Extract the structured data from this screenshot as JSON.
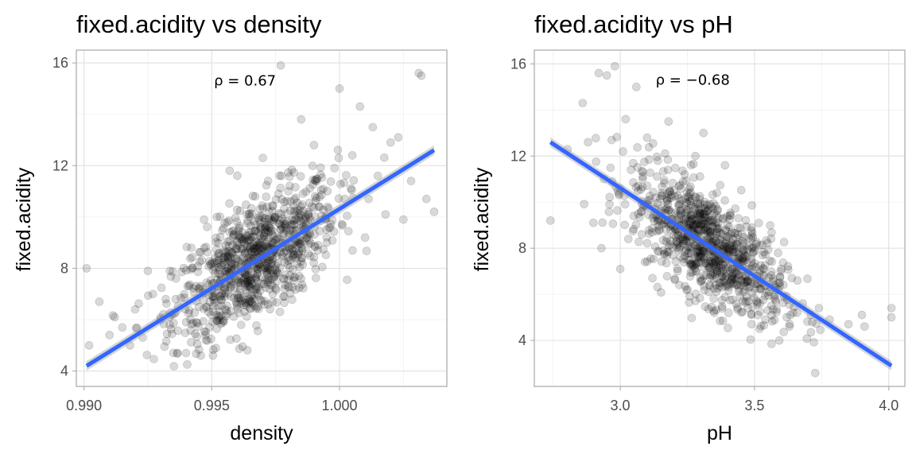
{
  "chart_data": [
    {
      "type": "scatter",
      "title": "fixed.acidity vs density",
      "xlabel": "density",
      "ylabel": "fixed.acidity",
      "xlim": [
        0.9897,
        1.0042
      ],
      "ylim": [
        3.4,
        16.5
      ],
      "xticks": [
        0.99,
        0.995,
        1.0
      ],
      "xtick_labels": [
        "0.990",
        "0.995",
        "1.000"
      ],
      "yticks": [
        4,
        8,
        12,
        16
      ],
      "ytick_labels": [
        "4",
        "8",
        "12",
        "16"
      ],
      "annotation": "ρ = 0.67",
      "annotation_at": [
        0.9963,
        15.3
      ],
      "grid": true,
      "trend_line": {
        "x": [
          0.9901,
          1.0037
        ],
        "y": [
          4.2,
          12.6
        ],
        "color": "#3366ff"
      },
      "points": {
        "color": "#000000",
        "sample": [
          [
            0.9901,
            8.0
          ],
          [
            0.9902,
            5.0
          ],
          [
            0.9906,
            6.7
          ],
          [
            0.991,
            5.4
          ],
          [
            0.9912,
            6.1
          ],
          [
            0.9915,
            5.7
          ],
          [
            0.9918,
            5.0
          ],
          [
            0.992,
            6.4
          ],
          [
            0.9923,
            5.3
          ],
          [
            0.9925,
            7.9
          ],
          [
            0.9927,
            7.0
          ],
          [
            0.993,
            6.0
          ],
          [
            0.9932,
            6.8
          ],
          [
            0.9935,
            4.7
          ],
          [
            0.9936,
            7.6
          ],
          [
            0.994,
            5.9
          ],
          [
            0.9942,
            8.8
          ],
          [
            0.9945,
            6.5
          ],
          [
            0.9947,
            9.9
          ],
          [
            0.995,
            7.2
          ],
          [
            0.9952,
            10.0
          ],
          [
            0.9955,
            6.9
          ],
          [
            0.9957,
            11.8
          ],
          [
            0.9958,
            8.2
          ],
          [
            0.996,
            7.0
          ],
          [
            0.9962,
            9.4
          ],
          [
            0.9965,
            7.3
          ],
          [
            0.9967,
            10.8
          ],
          [
            0.9968,
            6.5
          ],
          [
            0.997,
            12.3
          ],
          [
            0.9972,
            8.0
          ],
          [
            0.9975,
            9.1
          ],
          [
            0.9977,
            15.9
          ],
          [
            0.9978,
            7.6
          ],
          [
            0.998,
            11.0
          ],
          [
            0.9982,
            8.5
          ],
          [
            0.9985,
            13.8
          ],
          [
            0.9987,
            9.7
          ],
          [
            0.999,
            12.8
          ],
          [
            0.9992,
            10.4
          ],
          [
            0.9995,
            9.0
          ],
          [
            0.9998,
            11.9
          ],
          [
            1.0,
            15.0
          ],
          [
            1.0002,
            10.7
          ],
          [
            1.0005,
            12.4
          ],
          [
            1.0008,
            14.3
          ],
          [
            1.001,
            9.2
          ],
          [
            1.0013,
            13.5
          ],
          [
            1.0015,
            11.6
          ],
          [
            1.0018,
            10.1
          ],
          [
            1.002,
            12.9
          ],
          [
            1.0023,
            13.1
          ],
          [
            1.0025,
            9.9
          ],
          [
            1.0028,
            11.4
          ],
          [
            1.0031,
            15.6
          ],
          [
            1.0032,
            15.5
          ],
          [
            1.0034,
            10.7
          ],
          [
            1.0037,
            10.2
          ]
        ]
      }
    },
    {
      "type": "scatter",
      "title": "fixed.acidity vs pH",
      "xlabel": "pH",
      "ylabel": "fixed.acidity",
      "xlim": [
        2.68,
        4.06
      ],
      "ylim": [
        2.0,
        16.6
      ],
      "xticks": [
        3.0,
        3.5,
        4.0
      ],
      "xtick_labels": [
        "3.0",
        "3.5",
        "4.0"
      ],
      "yticks": [
        4,
        8,
        12,
        16
      ],
      "ytick_labels": [
        "4",
        "8",
        "12",
        "16"
      ],
      "annotation": "ρ = −0.68",
      "annotation_at": [
        3.27,
        15.3
      ],
      "grid": true,
      "trend_line": {
        "x": [
          2.74,
          4.01
        ],
        "y": [
          12.6,
          2.9
        ],
        "color": "#3366ff"
      },
      "points": {
        "color": "#000000",
        "sample": [
          [
            2.74,
            9.2
          ],
          [
            2.86,
            14.3
          ],
          [
            2.88,
            12.6
          ],
          [
            2.9,
            9.1
          ],
          [
            2.92,
            15.6
          ],
          [
            2.93,
            8.0
          ],
          [
            2.94,
            11.0
          ],
          [
            2.95,
            15.5
          ],
          [
            2.96,
            9.9
          ],
          [
            2.98,
            15.9
          ],
          [
            3.0,
            7.1
          ],
          [
            3.01,
            12.2
          ],
          [
            3.02,
            13.6
          ],
          [
            3.04,
            11.4
          ],
          [
            3.05,
            9.4
          ],
          [
            3.06,
            15.0
          ],
          [
            3.08,
            8.6
          ],
          [
            3.1,
            12.8
          ],
          [
            3.11,
            10.1
          ],
          [
            3.12,
            6.7
          ],
          [
            3.14,
            11.8
          ],
          [
            3.15,
            9.2
          ],
          [
            3.16,
            7.9
          ],
          [
            3.18,
            13.5
          ],
          [
            3.2,
            10.5
          ],
          [
            3.21,
            8.3
          ],
          [
            3.22,
            6.4
          ],
          [
            3.24,
            11.2
          ],
          [
            3.25,
            9.0
          ],
          [
            3.26,
            7.3
          ],
          [
            3.28,
            12.0
          ],
          [
            3.29,
            8.8
          ],
          [
            3.3,
            7.6
          ],
          [
            3.31,
            13.0
          ],
          [
            3.32,
            9.6
          ],
          [
            3.33,
            6.1
          ],
          [
            3.35,
            8.1
          ],
          [
            3.36,
            10.4
          ],
          [
            3.38,
            7.0
          ],
          [
            3.39,
            11.6
          ],
          [
            3.4,
            8.5
          ],
          [
            3.42,
            6.5
          ],
          [
            3.44,
            9.3
          ],
          [
            3.45,
            7.4
          ],
          [
            3.47,
            5.7
          ],
          [
            3.49,
            8.9
          ],
          [
            3.51,
            6.8
          ],
          [
            3.53,
            7.7
          ],
          [
            3.55,
            5.3
          ],
          [
            3.58,
            6.2
          ],
          [
            3.6,
            7.1
          ],
          [
            3.62,
            5.0
          ],
          [
            3.66,
            6.6
          ],
          [
            3.68,
            5.6
          ],
          [
            3.71,
            5.1
          ],
          [
            3.74,
            5.4
          ],
          [
            3.78,
            4.9
          ],
          [
            3.85,
            4.7
          ],
          [
            3.9,
            5.1
          ],
          [
            3.91,
            4.6
          ],
          [
            4.01,
            5.4
          ],
          [
            4.01,
            5.0
          ]
        ]
      }
    }
  ]
}
